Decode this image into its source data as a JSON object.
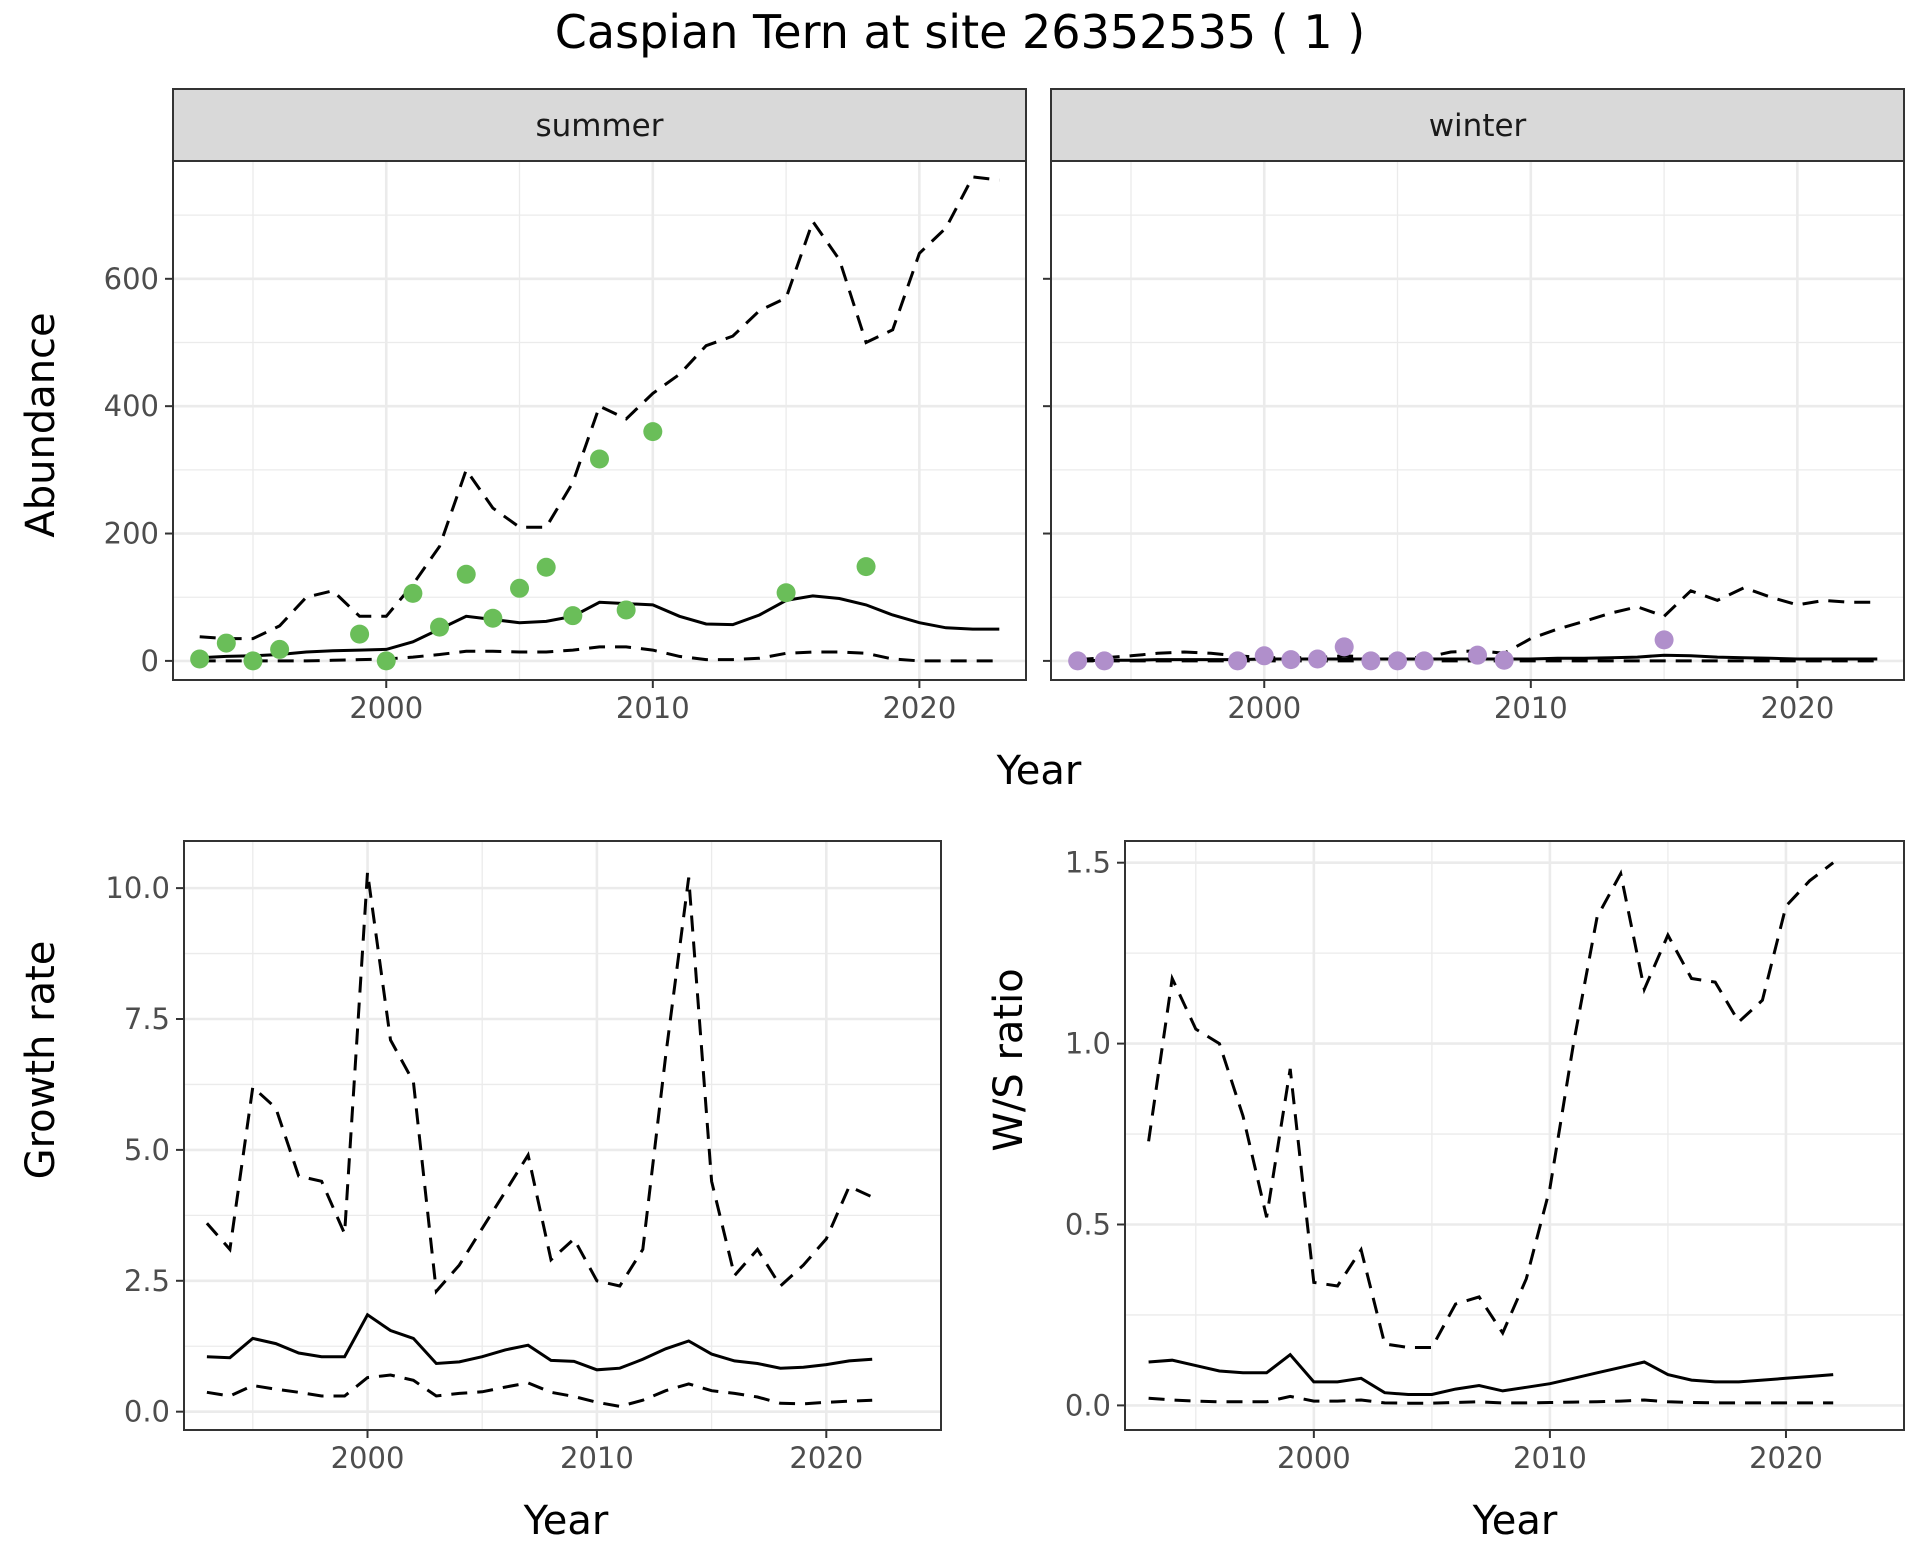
{
  "title": "Caspian Tern at site 26352535 ( 1 )",
  "colors": {
    "summer_points": "#6ABE59",
    "winter_points": "#B08FCB",
    "lines": "#000000",
    "strip_fill": "#D9D9D9",
    "grid": "#EBEBEB"
  },
  "chart_data": [
    {
      "type": "line",
      "facet": "summer",
      "xlabel": "Year",
      "ylabel": "Abundance",
      "xlim": [
        1992,
        2024
      ],
      "ylim": [
        -30,
        785
      ],
      "xticks": [
        2000,
        2010,
        2020
      ],
      "yticks": [
        0,
        200,
        400,
        600
      ],
      "grid": true,
      "x": [
        1993,
        1994,
        1995,
        1996,
        1997,
        1998,
        1999,
        2000,
        2001,
        2002,
        2003,
        2004,
        2005,
        2006,
        2007,
        2008,
        2009,
        2010,
        2011,
        2012,
        2013,
        2014,
        2015,
        2016,
        2017,
        2018,
        2019,
        2020,
        2021,
        2022,
        2023
      ],
      "series": [
        {
          "role": "estimate",
          "style": "solid",
          "values": [
            5,
            7,
            8,
            10,
            14,
            16,
            17,
            18,
            30,
            50,
            70,
            65,
            60,
            62,
            70,
            92,
            90,
            88,
            70,
            58,
            57,
            72,
            95,
            102,
            98,
            88,
            72,
            60,
            52,
            50,
            50
          ]
        },
        {
          "role": "upper",
          "style": "dashed",
          "values": [
            38,
            35,
            35,
            55,
            100,
            110,
            70,
            70,
            120,
            180,
            300,
            240,
            210,
            210,
            280,
            400,
            380,
            420,
            450,
            495,
            510,
            550,
            570,
            690,
            630,
            500,
            520,
            640,
            680,
            760,
            755
          ]
        },
        {
          "role": "lower",
          "style": "dashed",
          "values": [
            0,
            0,
            0,
            0,
            0,
            1,
            2,
            3,
            6,
            10,
            15,
            15,
            14,
            14,
            17,
            22,
            22,
            17,
            7,
            2,
            2,
            4,
            12,
            14,
            14,
            12,
            3,
            0,
            0,
            0,
            0
          ]
        }
      ],
      "points": {
        "color": "#6ABE59",
        "x": [
          1993,
          1994,
          1995,
          1996,
          1999,
          2000,
          2001,
          2002,
          2003,
          2004,
          2005,
          2006,
          2007,
          2008,
          2009,
          2010,
          2015,
          2018
        ],
        "y": [
          3,
          28,
          0,
          18,
          42,
          0,
          106,
          53,
          136,
          67,
          114,
          147,
          71,
          317,
          80,
          360,
          107,
          148
        ]
      }
    },
    {
      "type": "line",
      "facet": "winter",
      "xlabel": "Year",
      "ylabel": "",
      "xlim": [
        1992,
        2024
      ],
      "ylim": [
        -30,
        785
      ],
      "xticks": [
        2000,
        2010,
        2020
      ],
      "yticks": [
        0,
        200,
        400,
        600
      ],
      "grid": true,
      "x": [
        1993,
        1994,
        1995,
        1996,
        1997,
        1998,
        1999,
        2000,
        2001,
        2002,
        2003,
        2004,
        2005,
        2006,
        2007,
        2008,
        2009,
        2010,
        2011,
        2012,
        2013,
        2014,
        2015,
        2016,
        2017,
        2018,
        2019,
        2020,
        2021,
        2022,
        2023
      ],
      "series": [
        {
          "role": "estimate",
          "style": "solid",
          "values": [
            0,
            1,
            1,
            2,
            2,
            2,
            2,
            3,
            3,
            3,
            3,
            3,
            3,
            3,
            3,
            3,
            3,
            3,
            4,
            4,
            5,
            6,
            9,
            8,
            6,
            5,
            4,
            3,
            3,
            3,
            3
          ]
        },
        {
          "role": "upper",
          "style": "dashed",
          "values": [
            2,
            5,
            8,
            12,
            14,
            12,
            8,
            5,
            5,
            5,
            8,
            6,
            6,
            5,
            14,
            16,
            12,
            35,
            50,
            62,
            75,
            85,
            70,
            110,
            95,
            115,
            100,
            88,
            95,
            92,
            92
          ]
        },
        {
          "role": "lower",
          "style": "dashed",
          "values": [
            0,
            0,
            0,
            0,
            0,
            0,
            0,
            0,
            0,
            0,
            0,
            0,
            0,
            0,
            0,
            0,
            0,
            0,
            0,
            0,
            0,
            0,
            0,
            0,
            0,
            0,
            0,
            0,
            0,
            0,
            0
          ]
        }
      ],
      "points": {
        "color": "#B08FCB",
        "x": [
          1993,
          1994,
          1999,
          2000,
          2001,
          2002,
          2003,
          2004,
          2005,
          2006,
          2008,
          2009,
          2015
        ],
        "y": [
          0,
          0,
          0,
          8,
          2,
          3,
          22,
          0,
          0,
          0,
          9,
          1,
          33
        ]
      }
    },
    {
      "type": "line",
      "xlabel": "Year",
      "ylabel": "Growth rate",
      "xlim": [
        1992,
        2025
      ],
      "ylim": [
        -0.35,
        10.9
      ],
      "xticks": [
        2000,
        2010,
        2020
      ],
      "yticks": [
        0.0,
        2.5,
        5.0,
        7.5,
        10.0
      ],
      "ytick_labels": [
        "0.0",
        "2.5",
        "5.0",
        "7.5",
        "10.0"
      ],
      "grid": true,
      "x": [
        1993,
        1994,
        1995,
        1996,
        1997,
        1998,
        1999,
        2000,
        2001,
        2002,
        2003,
        2004,
        2005,
        2006,
        2007,
        2008,
        2009,
        2010,
        2011,
        2012,
        2013,
        2014,
        2015,
        2016,
        2017,
        2018,
        2019,
        2020,
        2021,
        2022
      ],
      "series": [
        {
          "role": "estimate",
          "style": "solid",
          "values": [
            1.05,
            1.03,
            1.4,
            1.3,
            1.12,
            1.05,
            1.05,
            1.85,
            1.55,
            1.4,
            0.92,
            0.95,
            1.05,
            1.18,
            1.27,
            0.98,
            0.96,
            0.8,
            0.83,
            1.0,
            1.2,
            1.35,
            1.1,
            0.97,
            0.92,
            0.83,
            0.85,
            0.9,
            0.97,
            1.0
          ]
        },
        {
          "role": "upper",
          "style": "dashed",
          "values": [
            3.6,
            3.1,
            6.2,
            5.8,
            4.5,
            4.4,
            3.4,
            10.3,
            7.1,
            6.3,
            2.3,
            2.8,
            3.5,
            4.2,
            4.9,
            2.9,
            3.3,
            2.5,
            2.4,
            3.1,
            6.8,
            10.2,
            4.4,
            2.6,
            3.1,
            2.4,
            2.8,
            3.3,
            4.3,
            4.1
          ]
        },
        {
          "role": "lower",
          "style": "dashed",
          "values": [
            0.37,
            0.3,
            0.5,
            0.43,
            0.37,
            0.3,
            0.3,
            0.65,
            0.7,
            0.6,
            0.3,
            0.35,
            0.38,
            0.47,
            0.55,
            0.37,
            0.29,
            0.18,
            0.1,
            0.22,
            0.4,
            0.53,
            0.4,
            0.35,
            0.28,
            0.16,
            0.15,
            0.18,
            0.2,
            0.22
          ]
        }
      ]
    },
    {
      "type": "line",
      "xlabel": "Year",
      "ylabel": "W/S ratio",
      "xlim": [
        1992,
        2025
      ],
      "ylim": [
        -0.068,
        1.56
      ],
      "xticks": [
        2000,
        2010,
        2020
      ],
      "yticks": [
        0.0,
        0.5,
        1.0,
        1.5
      ],
      "ytick_labels": [
        "0.0",
        "0.5",
        "1.0",
        "1.5"
      ],
      "grid": true,
      "x": [
        1993,
        1994,
        1995,
        1996,
        1997,
        1998,
        1999,
        2000,
        2001,
        2002,
        2003,
        2004,
        2005,
        2006,
        2007,
        2008,
        2009,
        2010,
        2011,
        2012,
        2013,
        2014,
        2015,
        2016,
        2017,
        2018,
        2019,
        2020,
        2021,
        2022
      ],
      "series": [
        {
          "role": "estimate",
          "style": "solid",
          "values": [
            0.12,
            0.125,
            0.11,
            0.095,
            0.09,
            0.09,
            0.14,
            0.065,
            0.065,
            0.075,
            0.035,
            0.03,
            0.03,
            0.045,
            0.055,
            0.04,
            0.05,
            0.06,
            0.075,
            0.09,
            0.105,
            0.12,
            0.085,
            0.07,
            0.065,
            0.065,
            0.07,
            0.075,
            0.08,
            0.085
          ]
        },
        {
          "role": "upper",
          "style": "dashed",
          "values": [
            0.73,
            1.18,
            1.04,
            1.0,
            0.8,
            0.52,
            0.93,
            0.34,
            0.33,
            0.43,
            0.17,
            0.16,
            0.16,
            0.28,
            0.3,
            0.2,
            0.35,
            0.6,
            1.0,
            1.35,
            1.47,
            1.15,
            1.3,
            1.18,
            1.17,
            1.06,
            1.12,
            1.38,
            1.45,
            1.5
          ]
        },
        {
          "role": "lower",
          "style": "dashed",
          "values": [
            0.02,
            0.015,
            0.012,
            0.01,
            0.01,
            0.01,
            0.025,
            0.012,
            0.012,
            0.015,
            0.007,
            0.006,
            0.006,
            0.008,
            0.01,
            0.007,
            0.007,
            0.008,
            0.009,
            0.01,
            0.012,
            0.015,
            0.01,
            0.008,
            0.007,
            0.007,
            0.007,
            0.007,
            0.007,
            0.007
          ]
        }
      ]
    }
  ],
  "strips": {
    "summer": "summer",
    "winter": "winter"
  },
  "labels": {
    "abundance": "Abundance",
    "growth": "Growth rate",
    "ws": "W/S ratio",
    "year": "Year"
  }
}
